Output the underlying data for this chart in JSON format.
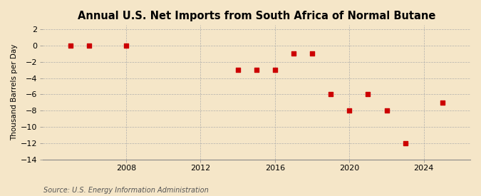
{
  "title": "Annual U.S. Net Imports from South Africa of Normal Butane",
  "ylabel": "Thousand Barrels per Day",
  "source": "Source: U.S. Energy Information Administration",
  "background_color": "#f5e6c8",
  "plot_bg_color": "#f5e6c8",
  "grid_color": "#aaaaaa",
  "point_color": "#cc0000",
  "years": [
    2005,
    2006,
    2008,
    2014,
    2015,
    2016,
    2017,
    2018,
    2019,
    2020,
    2021,
    2022,
    2023,
    2025
  ],
  "values": [
    0,
    0,
    0,
    -3,
    -3,
    -3,
    -1,
    -1,
    -6,
    -8,
    -6,
    -8,
    -12,
    -7
  ],
  "xlim": [
    2003.5,
    2026.5
  ],
  "ylim": [
    -14,
    2.5
  ],
  "xticks": [
    2008,
    2012,
    2016,
    2020,
    2024
  ],
  "yticks": [
    2,
    0,
    -2,
    -4,
    -6,
    -8,
    -10,
    -12,
    -14
  ],
  "marker": "s",
  "markersize": 4,
  "title_fontsize": 10.5,
  "label_fontsize": 7.5,
  "tick_fontsize": 8,
  "source_fontsize": 7
}
